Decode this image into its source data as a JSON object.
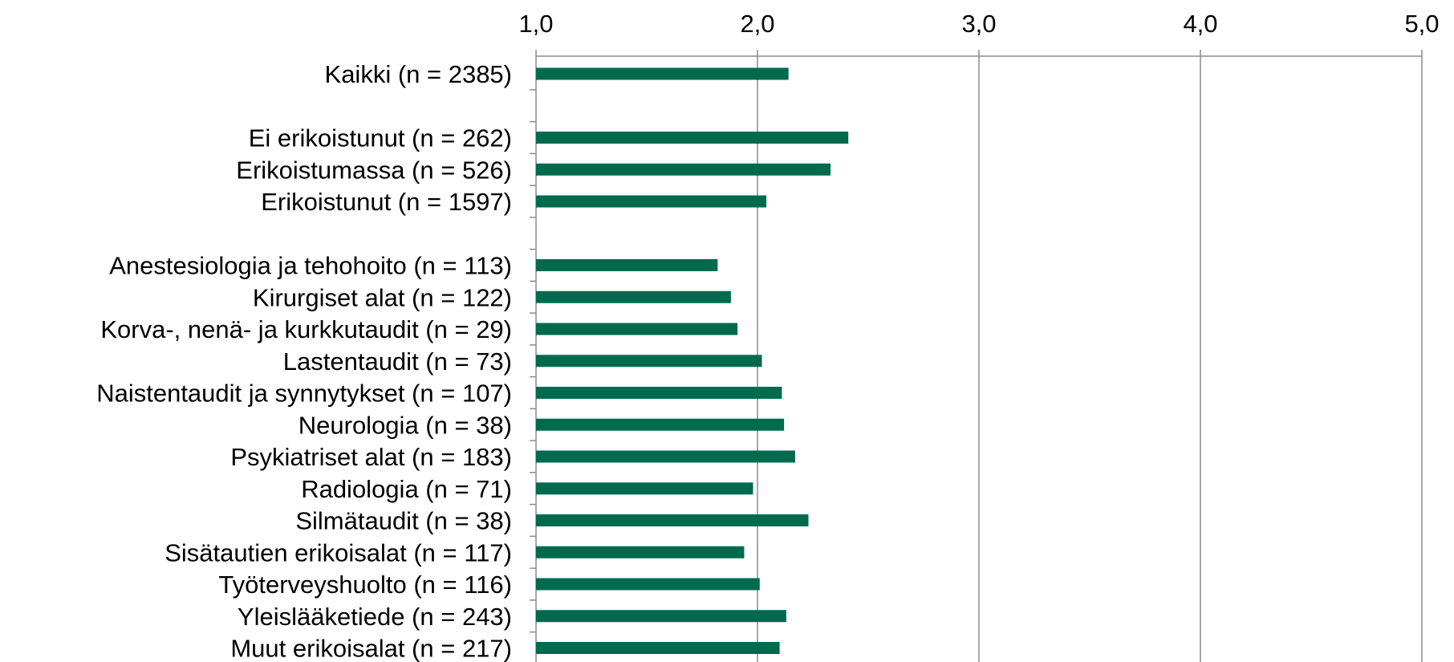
{
  "chart_data": {
    "type": "bar",
    "orientation": "horizontal",
    "title": "",
    "xlabel": "",
    "ylabel": "",
    "xlim": [
      1,
      5
    ],
    "x_ticks": [
      "1,0",
      "2,0",
      "3,0",
      "4,0",
      "5,0"
    ],
    "x_axis_position": "top",
    "grid": true,
    "bar_color": "#006a4e",
    "categories": [
      "Kaikki (n = 2385)",
      "",
      "Ei erikoistunut (n = 262)",
      "Erikoistumassa (n = 526)",
      "Erikoistunut (n = 1597)",
      "",
      "Anestesiologia ja tehohoito (n = 113)",
      "Kirurgiset alat (n = 122)",
      "Korva-, nenä- ja kurkkutaudit (n = 29)",
      "Lastentaudit (n = 73)",
      "Naistentaudit ja synnytykset (n = 107)",
      "Neurologia (n = 38)",
      "Psykiatriset alat (n = 183)",
      "Radiologia (n = 71)",
      "Silmätaudit (n = 38)",
      "Sisätautien erikoisalat (n = 117)",
      "Työterveyshuolto (n = 116)",
      "Yleislääketiede (n = 243)",
      "Muut erikoisalat (n = 217)"
    ],
    "values": [
      2.14,
      null,
      2.41,
      2.33,
      2.04,
      null,
      1.82,
      1.88,
      1.91,
      2.02,
      2.11,
      2.12,
      2.17,
      1.98,
      2.23,
      1.94,
      2.01,
      2.13,
      2.1
    ]
  }
}
